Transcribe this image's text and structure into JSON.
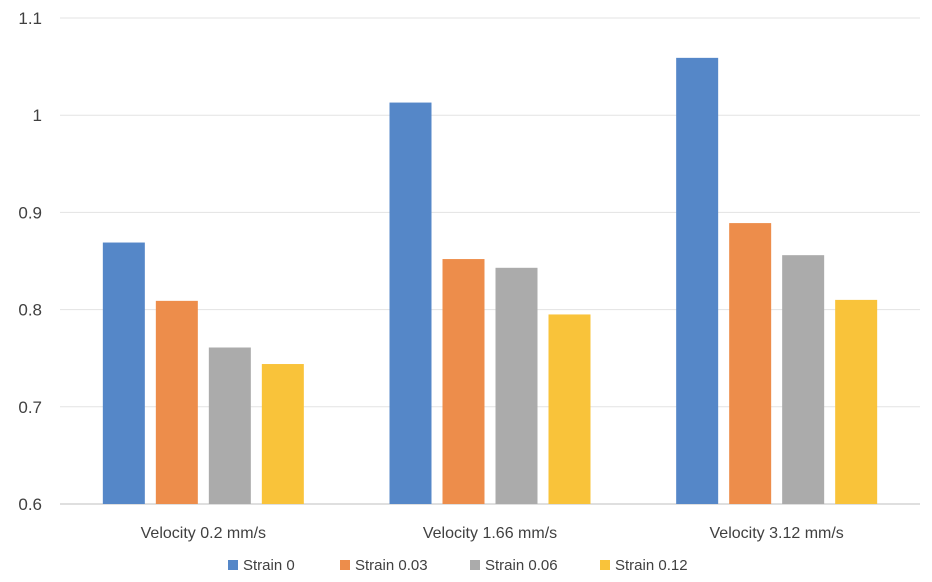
{
  "chart_data": {
    "type": "bar",
    "categories": [
      "Velocity 0.2 mm/s",
      "Velocity 1.66 mm/s",
      "Velocity 3.12 mm/s"
    ],
    "series": [
      {
        "name": "Strain 0",
        "color": "#5587C8",
        "values": [
          0.869,
          1.013,
          1.059
        ]
      },
      {
        "name": "Strain 0.03",
        "color": "#ED8D4B",
        "values": [
          0.809,
          0.852,
          0.889
        ]
      },
      {
        "name": "Strain 0.06",
        "color": "#ABABAB",
        "values": [
          0.761,
          0.843,
          0.856
        ]
      },
      {
        "name": "Strain 0.12",
        "color": "#F9C33A",
        "values": [
          0.744,
          0.795,
          0.81
        ]
      }
    ],
    "ylim": [
      0.6,
      1.1
    ],
    "yticks": [
      "0.6",
      "0.7",
      "0.8",
      "0.9",
      "1",
      "1.1"
    ],
    "grid": true,
    "legend_position": "bottom"
  }
}
